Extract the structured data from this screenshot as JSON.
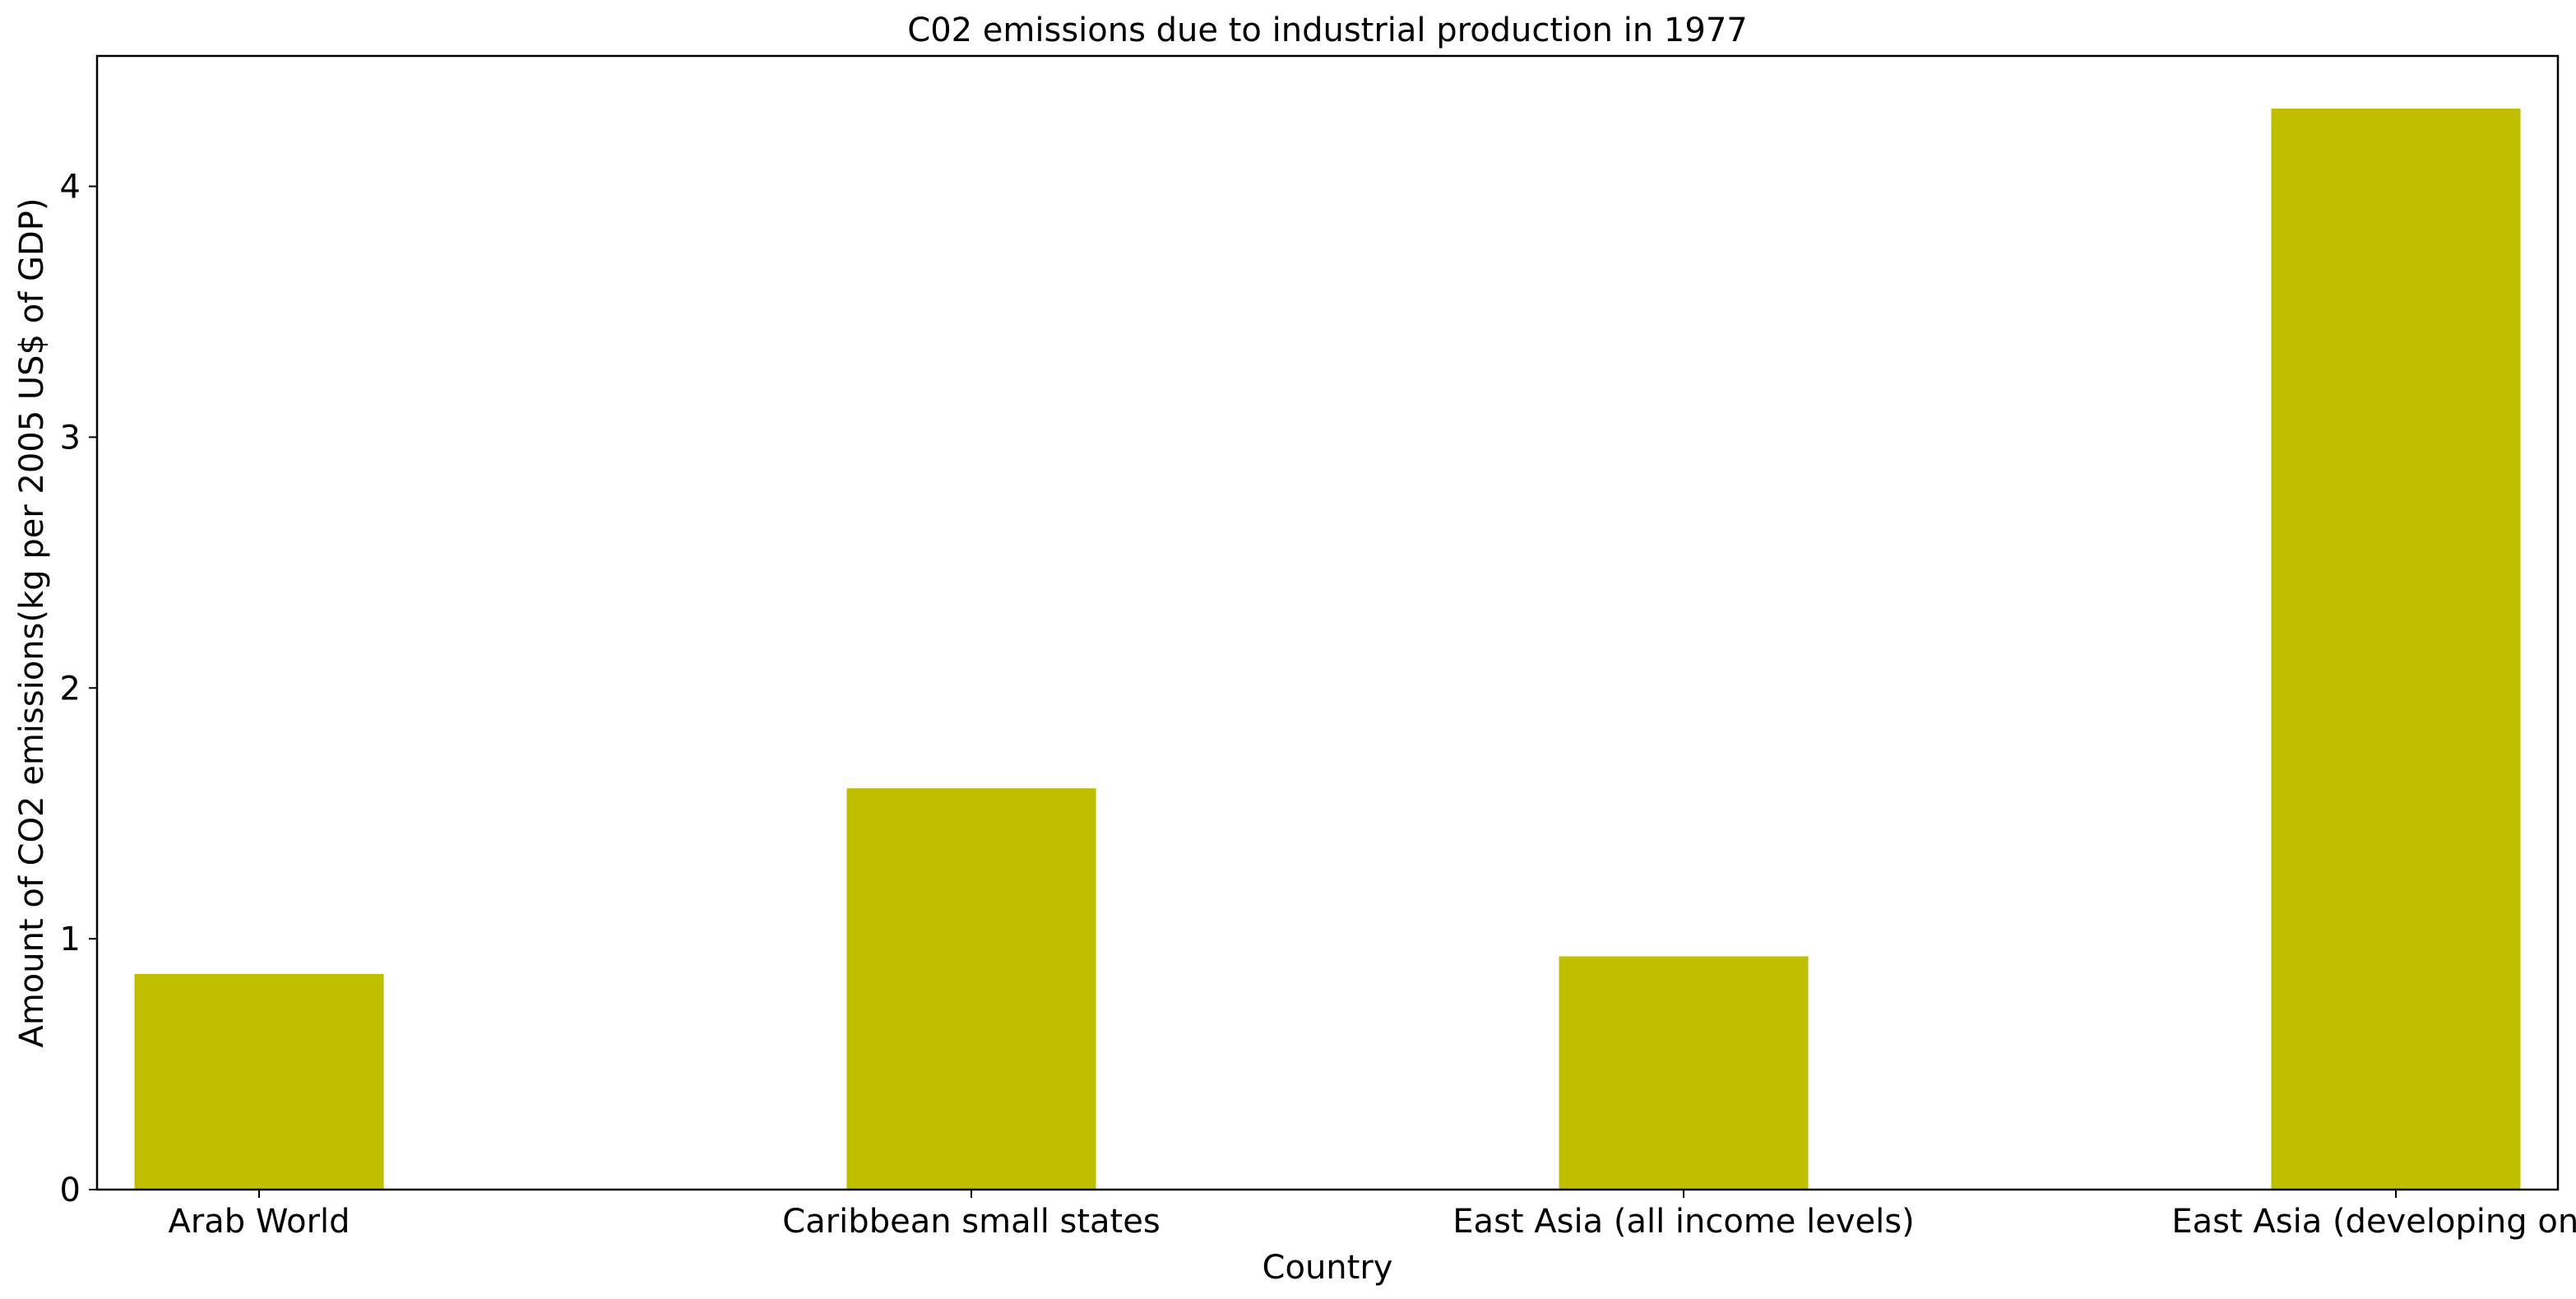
{
  "chart_data": {
    "type": "bar",
    "title": "C02 emissions due to industrial production in 1977",
    "xlabel": "Country",
    "ylabel": "Amount of CO2 emissions(kg per 2005 US$ of GDP)",
    "categories": [
      "Arab World",
      "Caribbean small states",
      "East Asia (all income levels)",
      "East Asia (developing only)"
    ],
    "values": [
      0.86,
      1.6,
      0.93,
      4.31
    ],
    "ylim": [
      0,
      4.52
    ],
    "yticks": [
      0,
      1,
      2,
      3,
      4
    ],
    "grid": false,
    "legend": "none",
    "bar_color": "#bfbf00"
  }
}
